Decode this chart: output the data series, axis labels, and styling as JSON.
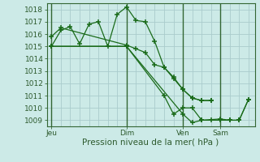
{
  "background_color": "#cceae7",
  "grid_color": "#aacccc",
  "line_color": "#1a6b1a",
  "marker_color": "#1a6b1a",
  "xlabel": "Pression niveau de la mer( hPa )",
  "ylim": [
    1008.5,
    1018.5
  ],
  "yticks": [
    1009,
    1010,
    1011,
    1012,
    1013,
    1014,
    1015,
    1016,
    1017,
    1018
  ],
  "xtick_labels": [
    "Jeu",
    "Dim",
    "Ven",
    "Sam"
  ],
  "xtick_positions": [
    0,
    48,
    84,
    108
  ],
  "vline_positions": [
    0,
    48,
    84,
    108
  ],
  "xlim": [
    -3,
    130
  ],
  "series": [
    {
      "x": [
        0,
        6,
        12,
        18,
        24,
        30,
        36,
        42,
        48,
        54,
        60,
        66,
        72,
        78,
        84,
        90,
        96,
        102
      ],
      "y": [
        1015.0,
        1016.3,
        1016.6,
        1015.2,
        1016.8,
        1017.0,
        1015.0,
        1017.6,
        1018.2,
        1017.1,
        1017.0,
        1015.4,
        1013.3,
        1012.5,
        1011.5,
        1010.8,
        1010.6,
        1010.6
      ]
    },
    {
      "x": [
        0,
        6,
        48,
        54,
        60,
        66,
        72,
        78,
        84,
        90,
        96,
        102
      ],
      "y": [
        1015.8,
        1016.5,
        1015.1,
        1014.8,
        1014.5,
        1013.5,
        1013.3,
        1012.4,
        1011.5,
        1010.8,
        1010.6,
        1010.6
      ]
    },
    {
      "x": [
        0,
        48,
        84,
        90,
        96,
        108,
        114,
        120,
        126
      ],
      "y": [
        1015.0,
        1015.0,
        1009.5,
        1008.8,
        1009.0,
        1009.1,
        1009.0,
        1009.0,
        1010.7
      ]
    },
    {
      "x": [
        0,
        48,
        72,
        78,
        84,
        90,
        96,
        102,
        108,
        114,
        120,
        126
      ],
      "y": [
        1015.0,
        1015.0,
        1011.0,
        1009.5,
        1010.0,
        1010.0,
        1009.0,
        1009.0,
        1009.0,
        1009.0,
        1009.0,
        1010.7
      ]
    }
  ],
  "figsize": [
    3.2,
    2.0
  ],
  "dpi": 100
}
